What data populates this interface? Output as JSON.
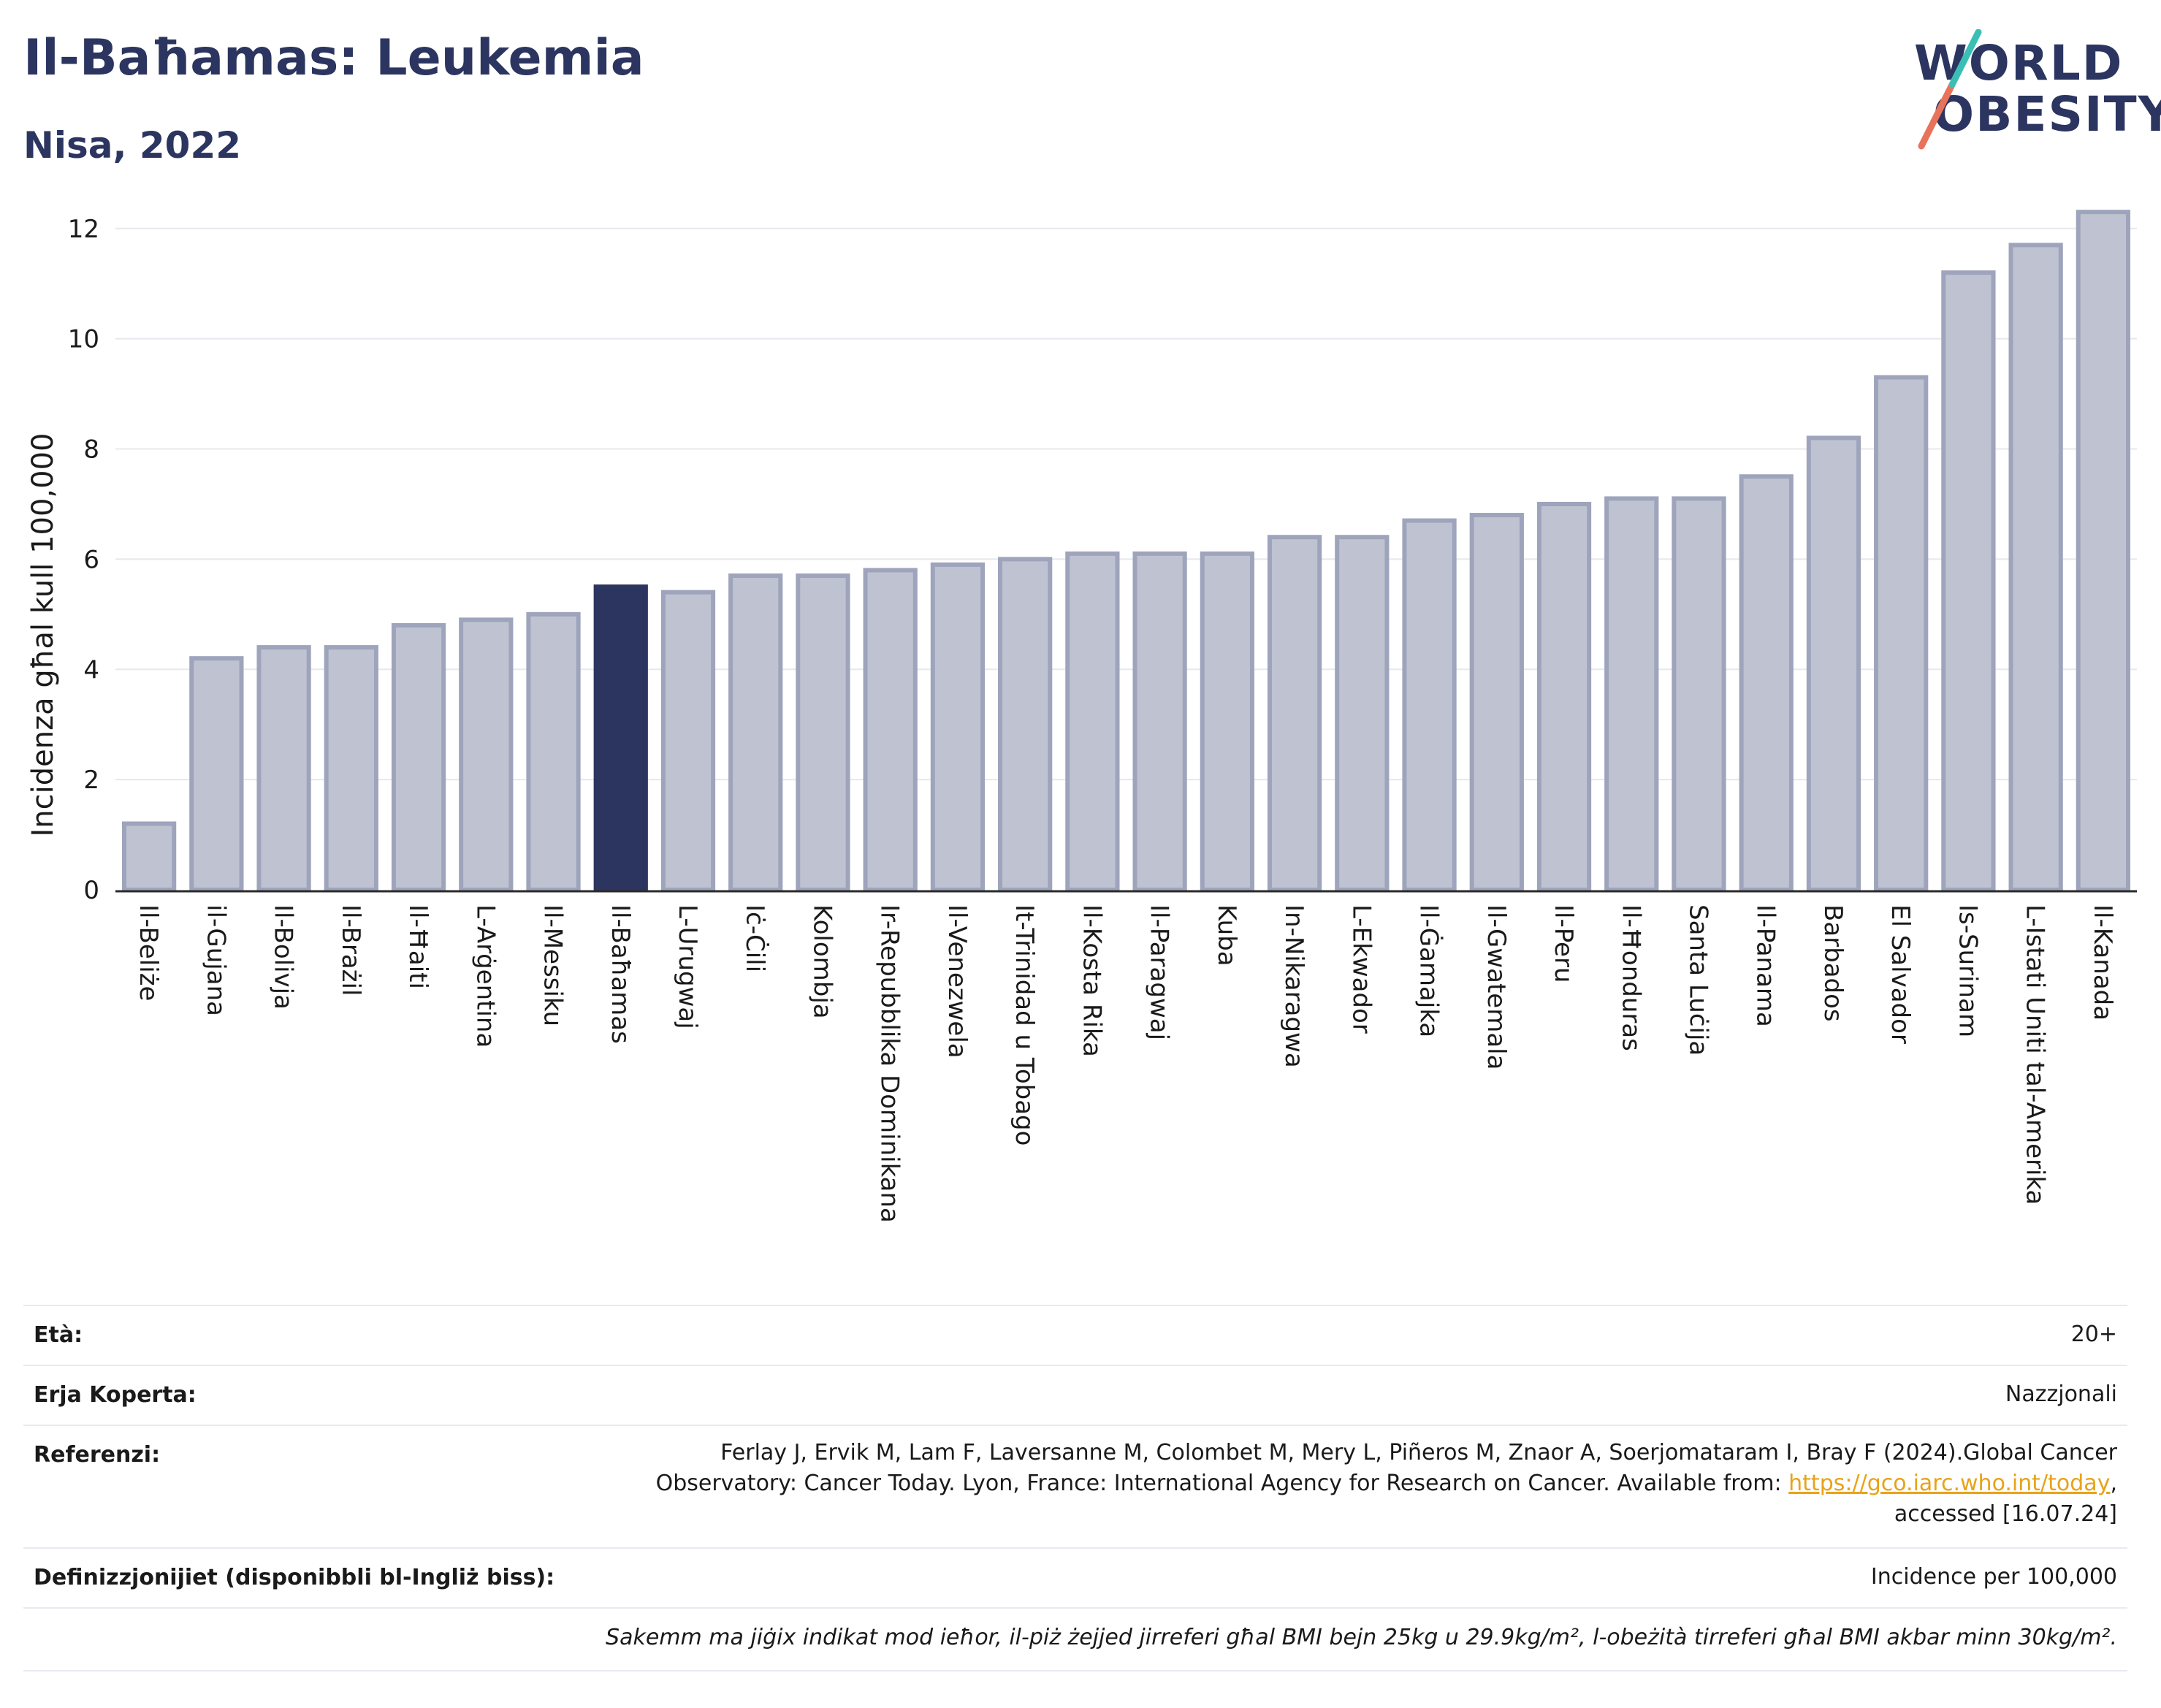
{
  "header": {
    "title": "Il-Baħamas: Leukemia",
    "subtitle": "Nisa, 2022"
  },
  "logo": {
    "line1": "WORLD",
    "line2": "OBESITY"
  },
  "colors": {
    "highlight": "#2b3560",
    "bar": "#bfc3d1",
    "bar_border": "#9ea4bb",
    "grid": "#e6e8ee"
  },
  "chart_data": {
    "type": "bar",
    "ylabel": "Incidenza għal kull 100,000",
    "ylim": [
      0,
      12.7
    ],
    "yticks": [
      0,
      2,
      4,
      6,
      8,
      10,
      12
    ],
    "grid": true,
    "highlight": "Il-Baħamas",
    "categories": [
      "Il-Beliże",
      "il-Gujana",
      "Il-Bolivja",
      "Il-Brażil",
      "Il-Ħaiti",
      "L-Arġentina",
      "Il-Messiku",
      "Il-Baħamas",
      "L-Urugwaj",
      "Iċ-Ċili",
      "Kolombja",
      "Ir-Repubblika Dominikana",
      "Il-Venezwela",
      "It-Trinidad u Tobago",
      "Il-Kosta Rika",
      "Il-Paragwaj",
      "Kuba",
      "In-Nikaragwa",
      "L-Ekwador",
      "Il-Ġamajka",
      "Il-Gwatemala",
      "Il-Peru",
      "Il-Ħonduras",
      "Santa Luċija",
      "Il-Panama",
      "Barbados",
      "El Salvador",
      "Is-Surinam",
      "L-Istati Uniti tal-Amerika",
      "Il-Kanada"
    ],
    "values": [
      1.2,
      4.2,
      4.4,
      4.4,
      4.8,
      4.9,
      5.0,
      5.5,
      5.4,
      5.7,
      5.7,
      5.8,
      5.9,
      6.0,
      6.1,
      6.1,
      6.1,
      6.4,
      6.4,
      6.7,
      6.8,
      7.0,
      7.1,
      7.1,
      7.5,
      8.2,
      9.3,
      11.2,
      11.7,
      12.3
    ]
  },
  "info": {
    "age_label": "Età:",
    "age_value": "20+",
    "area_label": "Erja Koperta:",
    "area_value": "Nazzjonali",
    "ref_label": "Referenzi:",
    "ref_line1": "Ferlay J, Ervik M, Lam F, Laversanne M, Colombet M, Mery L, Piñeros M, Znaor A, Soerjomataram I, Bray F (2024).Global Cancer",
    "ref_line2_pre": "Observatory: Cancer Today. Lyon, France: International Agency for Research on Cancer. Available from: ",
    "ref_link": "https://gco.iarc.who.int/today",
    "ref_line2_post": ",",
    "ref_line3": "accessed [16.07.24]",
    "def_label": "Definizzjonijiet (disponibbli bl-Ingliż biss):",
    "def_value": "Incidence per 100,000",
    "note": "Sakemm ma jiġix indikat mod ieħor, il-piż żejjed jirreferi għal BMI bejn 25kg u 29.9kg/m², l-obeżità tirreferi għal BMI akbar minn 30kg/m²."
  }
}
